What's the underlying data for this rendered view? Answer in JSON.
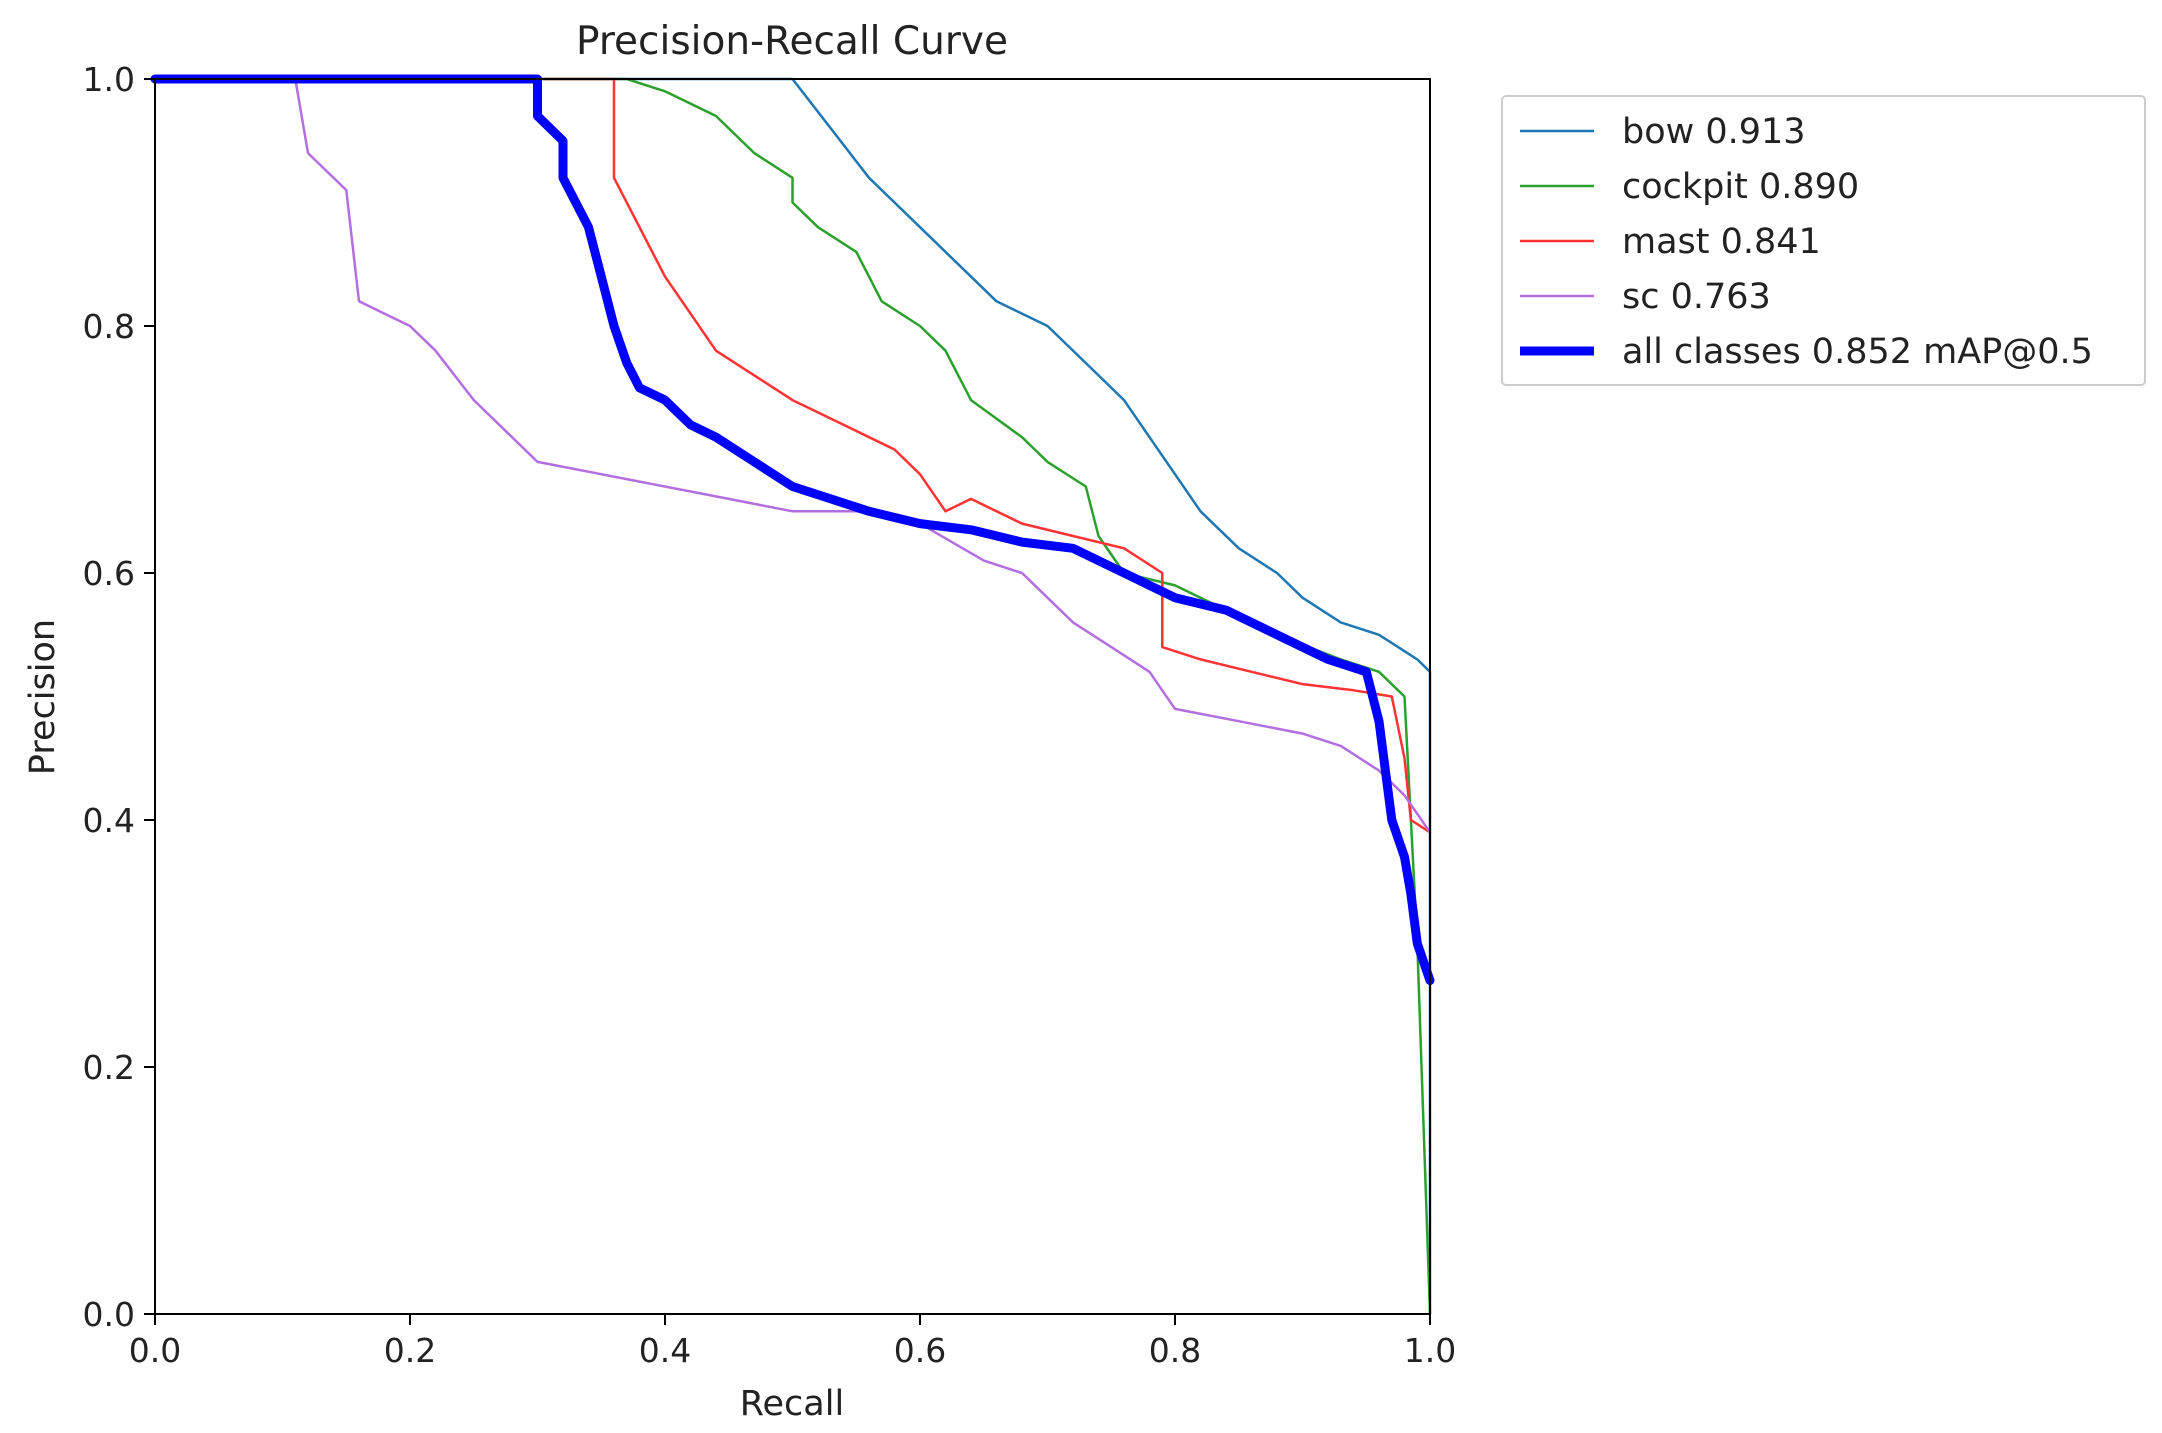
{
  "chart_data": {
    "type": "line",
    "title": "Precision-Recall Curve",
    "xlabel": "Recall",
    "ylabel": "Precision",
    "xlim": [
      0,
      1
    ],
    "ylim": [
      0,
      1
    ],
    "xticks": [
      "0.0",
      "0.2",
      "0.4",
      "0.6",
      "0.8",
      "1.0"
    ],
    "yticks": [
      "0.0",
      "0.2",
      "0.4",
      "0.6",
      "0.8",
      "1.0"
    ],
    "grid": false,
    "legend_position": "outside-top-right",
    "series": [
      {
        "name": "bow",
        "label": "bow 0.913",
        "color": "#1f77b4",
        "weight": "thin",
        "x": [
          0.0,
          0.5,
          0.5,
          0.53,
          0.56,
          0.6,
          0.63,
          0.66,
          0.7,
          0.73,
          0.76,
          0.78,
          0.8,
          0.82,
          0.85,
          0.88,
          0.9,
          0.93,
          0.96,
          0.99,
          1.0,
          1.0
        ],
        "y": [
          1.0,
          1.0,
          1.0,
          0.96,
          0.92,
          0.88,
          0.85,
          0.82,
          0.8,
          0.77,
          0.74,
          0.71,
          0.68,
          0.65,
          0.62,
          0.6,
          0.58,
          0.56,
          0.55,
          0.53,
          0.52,
          0.0
        ]
      },
      {
        "name": "cockpit",
        "label": "cockpit 0.890",
        "color": "#2ca02c",
        "weight": "thin",
        "x": [
          0.0,
          0.37,
          0.4,
          0.44,
          0.47,
          0.5,
          0.5,
          0.52,
          0.55,
          0.57,
          0.6,
          0.62,
          0.64,
          0.68,
          0.7,
          0.73,
          0.74,
          0.76,
          0.8,
          0.84,
          0.88,
          0.93,
          0.96,
          0.98,
          0.985,
          0.99,
          1.0
        ],
        "y": [
          1.0,
          1.0,
          0.99,
          0.97,
          0.94,
          0.92,
          0.9,
          0.88,
          0.86,
          0.82,
          0.8,
          0.78,
          0.74,
          0.71,
          0.69,
          0.67,
          0.63,
          0.6,
          0.59,
          0.57,
          0.55,
          0.53,
          0.52,
          0.5,
          0.4,
          0.3,
          0.0
        ]
      },
      {
        "name": "mast",
        "label": "mast 0.841",
        "color": "#ff3333",
        "weight": "thin",
        "x": [
          0.0,
          0.36,
          0.36,
          0.38,
          0.4,
          0.42,
          0.44,
          0.47,
          0.5,
          0.54,
          0.58,
          0.6,
          0.62,
          0.64,
          0.68,
          0.72,
          0.76,
          0.79,
          0.79,
          0.82,
          0.86,
          0.9,
          0.94,
          0.97,
          0.98,
          0.985,
          1.0
        ],
        "y": [
          1.0,
          1.0,
          0.92,
          0.88,
          0.84,
          0.81,
          0.78,
          0.76,
          0.74,
          0.72,
          0.7,
          0.68,
          0.65,
          0.66,
          0.64,
          0.63,
          0.62,
          0.6,
          0.54,
          0.53,
          0.52,
          0.51,
          0.505,
          0.5,
          0.45,
          0.4,
          0.39
        ]
      },
      {
        "name": "sc",
        "label": "sc 0.763",
        "color": "#b36ee0",
        "weight": "thin",
        "x": [
          0.0,
          0.11,
          0.12,
          0.15,
          0.16,
          0.2,
          0.22,
          0.25,
          0.27,
          0.3,
          0.35,
          0.45,
          0.5,
          0.55,
          0.6,
          0.65,
          0.68,
          0.7,
          0.72,
          0.75,
          0.78,
          0.8,
          0.85,
          0.9,
          0.93,
          0.96,
          0.98,
          1.0
        ],
        "y": [
          1.0,
          1.0,
          0.94,
          0.91,
          0.82,
          0.8,
          0.78,
          0.74,
          0.72,
          0.69,
          0.68,
          0.66,
          0.65,
          0.65,
          0.64,
          0.61,
          0.6,
          0.58,
          0.56,
          0.54,
          0.52,
          0.49,
          0.48,
          0.47,
          0.46,
          0.44,
          0.42,
          0.39
        ]
      },
      {
        "name": "all classes",
        "label": "all classes 0.852 mAP@0.5",
        "color": "#0000ff",
        "weight": "thick",
        "x": [
          0.0,
          0.3,
          0.3,
          0.32,
          0.32,
          0.34,
          0.35,
          0.36,
          0.37,
          0.38,
          0.4,
          0.42,
          0.44,
          0.47,
          0.5,
          0.53,
          0.56,
          0.6,
          0.64,
          0.68,
          0.72,
          0.76,
          0.8,
          0.84,
          0.88,
          0.92,
          0.95,
          0.96,
          0.97,
          0.98,
          0.985,
          0.99,
          1.0
        ],
        "y": [
          1.0,
          1.0,
          0.97,
          0.95,
          0.92,
          0.88,
          0.84,
          0.8,
          0.77,
          0.75,
          0.74,
          0.72,
          0.71,
          0.69,
          0.67,
          0.66,
          0.65,
          0.64,
          0.635,
          0.625,
          0.62,
          0.6,
          0.58,
          0.57,
          0.55,
          0.53,
          0.52,
          0.48,
          0.4,
          0.37,
          0.34,
          0.3,
          0.27
        ]
      }
    ]
  }
}
